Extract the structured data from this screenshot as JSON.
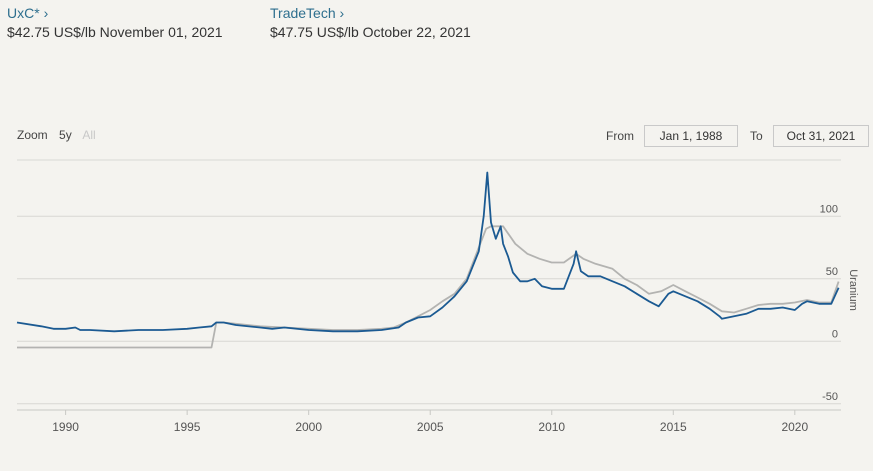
{
  "prices": {
    "uxc": {
      "source": "UxC*",
      "arrow": "›",
      "value": "$42.75 US$/lb November 01, 2021"
    },
    "tradetech": {
      "source": "TradeTech",
      "arrow": "›",
      "value": "$47.75 US$/lb October 22, 2021"
    }
  },
  "zoom": {
    "label": "Zoom",
    "buttons": [
      "5y",
      "All"
    ]
  },
  "range": {
    "from_label": "From",
    "from_value": "Jan 1, 1988",
    "to_label": "To",
    "to_value": "Oct 31, 2021"
  },
  "chart_data": {
    "type": "line",
    "title": "",
    "xlabel": "",
    "ylabel": "Uranium",
    "xlim": [
      1988.0,
      2021.9
    ],
    "ylim": [
      -55,
      145
    ],
    "x_ticks": [
      "1990",
      "1995",
      "2000",
      "2005",
      "2010",
      "2015",
      "2020"
    ],
    "y_ticks": [
      "-50",
      "0",
      "50",
      "100"
    ],
    "grid": true,
    "series": [
      {
        "name": "UxC*",
        "color": "#1b5a92",
        "x": [
          1988.0,
          1989.0,
          1989.5,
          1990.0,
          1990.4,
          1990.6,
          1991.0,
          1992.0,
          1993.0,
          1994.0,
          1995.0,
          1995.5,
          1996.0,
          1996.2,
          1996.5,
          1997.0,
          1998.0,
          1998.5,
          1999.0,
          2000.0,
          2001.0,
          2002.0,
          2003.0,
          2003.7,
          2004.0,
          2004.5,
          2005.0,
          2005.5,
          2006.0,
          2006.5,
          2007.0,
          2007.2,
          2007.35,
          2007.5,
          2007.7,
          2007.9,
          2008.0,
          2008.2,
          2008.4,
          2008.7,
          2009.0,
          2009.3,
          2009.6,
          2010.0,
          2010.5,
          2010.9,
          2011.0,
          2011.2,
          2011.5,
          2012.0,
          2012.5,
          2013.0,
          2013.5,
          2014.0,
          2014.4,
          2014.8,
          2015.0,
          2015.5,
          2016.0,
          2016.5,
          2016.9,
          2017.0,
          2017.5,
          2018.0,
          2018.5,
          2019.0,
          2019.5,
          2020.0,
          2020.3,
          2020.5,
          2021.0,
          2021.5,
          2021.8
        ],
        "y": [
          15,
          12,
          10,
          10,
          11,
          9,
          9,
          8,
          9,
          9,
          10,
          11,
          12,
          15,
          15,
          13,
          11,
          10,
          11,
          9,
          8,
          8,
          9,
          11,
          15,
          19,
          20,
          27,
          36,
          48,
          72,
          100,
          135,
          95,
          82,
          92,
          78,
          68,
          55,
          48,
          48,
          50,
          44,
          42,
          42,
          62,
          72,
          56,
          52,
          52,
          48,
          44,
          38,
          32,
          28,
          38,
          40,
          36,
          32,
          26,
          20,
          18,
          20,
          22,
          26,
          26,
          27,
          25,
          30,
          32,
          30,
          30,
          42.75
        ]
      },
      {
        "name": "TradeTech",
        "color": "#b3b3b1",
        "x": [
          1988.0,
          1996.0,
          1996.2,
          1996.5,
          1997.0,
          1998.0,
          1999.0,
          2000.0,
          2001.0,
          2002.0,
          2003.0,
          2003.5,
          2004.0,
          2004.5,
          2005.0,
          2005.5,
          2006.0,
          2006.5,
          2007.0,
          2007.3,
          2007.5,
          2008.0,
          2008.5,
          2009.0,
          2009.5,
          2010.0,
          2010.5,
          2011.0,
          2011.3,
          2011.8,
          2012.5,
          2013.0,
          2013.5,
          2014.0,
          2014.5,
          2015.0,
          2015.5,
          2016.0,
          2016.5,
          2017.0,
          2017.5,
          2018.0,
          2018.5,
          2019.0,
          2019.5,
          2020.0,
          2020.5,
          2021.0,
          2021.5,
          2021.8
        ],
        "y": [
          -5,
          -5,
          15,
          15,
          14,
          12,
          11,
          10,
          9,
          9,
          10,
          11,
          15,
          20,
          25,
          32,
          38,
          50,
          75,
          90,
          92,
          92,
          78,
          70,
          66,
          63,
          63,
          70,
          66,
          62,
          58,
          50,
          45,
          38,
          40,
          45,
          40,
          35,
          30,
          24,
          23,
          26,
          29,
          30,
          30,
          31,
          33,
          31,
          31,
          47.75
        ]
      }
    ]
  }
}
